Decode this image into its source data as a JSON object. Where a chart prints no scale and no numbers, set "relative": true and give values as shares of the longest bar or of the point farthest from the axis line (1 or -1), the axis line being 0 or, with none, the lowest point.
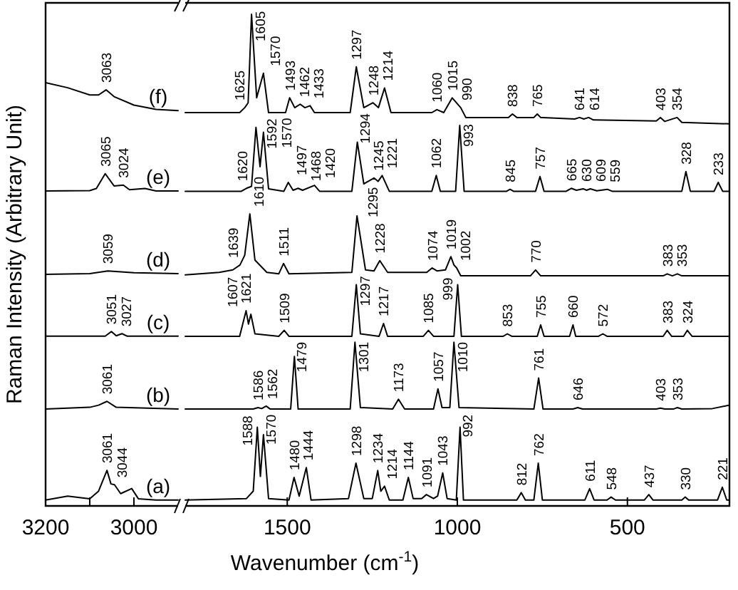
{
  "chart_data": [
    {
      "type": "line",
      "relative": true,
      "ylabel": "Raman Intensity (Arbitrary Unit)",
      "xlim": [
        3200,
        2900
      ],
      "xticks": [
        3200,
        {
          "value": 3100,
          "label": null
        },
        3000
      ],
      "series": [
        {
          "name": "(a)",
          "color": "#000000",
          "x": [
            3200,
            3150,
            3100,
            3080,
            3061,
            3052,
            3044,
            3030,
            3005,
            2990,
            2950,
            2900
          ],
          "values": [
            0.014,
            0.023,
            0.017,
            0.035,
            0.084,
            0.052,
            0.05,
            0.029,
            0.041,
            0.017,
            0.014,
            0.014
          ]
        },
        {
          "name": "(b)",
          "color": "#000000",
          "x": [
            3200,
            3100,
            3080,
            3061,
            3040,
            2900
          ],
          "values": [
            0.229,
            0.233,
            0.238,
            0.247,
            0.233,
            0.229
          ]
        },
        {
          "name": "(c)",
          "color": "#000000",
          "x": [
            3200,
            3065,
            3051,
            3040,
            3027,
            3015,
            2900
          ],
          "values": [
            0.401,
            0.401,
            0.412,
            0.402,
            0.407,
            0.401,
            0.401
          ]
        },
        {
          "name": "(d)",
          "color": "#000000",
          "x": [
            3200,
            3100,
            3059,
            3000,
            2900
          ],
          "values": [
            0.547,
            0.549,
            0.555,
            0.551,
            0.549
          ]
        },
        {
          "name": "(e)",
          "color": "#000000",
          "x": [
            3200,
            3100,
            3085,
            3065,
            3045,
            3024,
            3010,
            2975,
            2950,
            2900
          ],
          "values": [
            0.744,
            0.745,
            0.75,
            0.785,
            0.756,
            0.758,
            0.747,
            0.75,
            0.744,
            0.744
          ]
        },
        {
          "name": "(f)",
          "color": "#000000",
          "x": [
            3200,
            3150,
            3100,
            3080,
            3063,
            3045,
            3000,
            2950,
            2900
          ],
          "values": [
            1,
            0.988,
            0.971,
            0.971,
            0.983,
            0.967,
            0.947,
            0.937,
            0.934
          ]
        }
      ],
      "annotations": [
        {
          "text": "3061",
          "x": 3061,
          "y": 0.084
        },
        {
          "text": "3044",
          "x": 3044,
          "y": 0.05
        },
        {
          "text": "3061",
          "x": 3061,
          "y": 0.247
        },
        {
          "text": "3051",
          "x": 3051,
          "y": 0.412
        },
        {
          "text": "3027",
          "x": 3027,
          "y": 0.407
        },
        {
          "text": "3059",
          "x": 3059,
          "y": 0.555
        },
        {
          "text": "3065",
          "x": 3065,
          "y": 0.785
        },
        {
          "text": "3024",
          "x": 3024,
          "y": 0.758
        },
        {
          "text": "3063",
          "x": 3063,
          "y": 0.983
        }
      ]
    },
    {
      "type": "line",
      "relative": true,
      "xlabel": "Wavenumber (cm$^{-1}$)",
      "xlim": [
        1800,
        200
      ],
      "xticks": [
        1500,
        1000,
        500
      ],
      "series": [
        {
          "color": "#000000",
          "x": [
            1800,
            1620,
            1600,
            1588,
            1579,
            1570,
            1555,
            1495,
            1480,
            1465,
            1444,
            1430,
            1320,
            1298,
            1275,
            1250,
            1234,
            1225,
            1214,
            1200,
            1160,
            1144,
            1130,
            1105,
            1091,
            1070,
            1058,
            1043,
            1030,
            1003,
            992,
            982,
            825,
            812,
            800,
            775,
            762,
            750,
            625,
            611,
            598,
            560,
            548,
            535,
            450,
            437,
            425,
            340,
            330,
            320,
            235,
            221,
            208,
            200
          ],
          "values": [
            0.012,
            0.015,
            0.03,
            0.16,
            0.06,
            0.145,
            0.015,
            0.012,
            0.058,
            0.02,
            0.078,
            0.012,
            0.015,
            0.087,
            0.015,
            0.015,
            0.072,
            0.03,
            0.04,
            0.012,
            0.012,
            0.058,
            0.015,
            0.015,
            0.023,
            0.015,
            0.02,
            0.067,
            0.015,
            0.012,
            0.16,
            0.012,
            0.012,
            0.027,
            0.012,
            0.012,
            0.087,
            0.012,
            0.012,
            0.035,
            0.012,
            0.012,
            0.018,
            0.012,
            0.012,
            0.023,
            0.012,
            0.012,
            0.018,
            0.012,
            0.012,
            0.038,
            0.012,
            0.012
          ]
        },
        {
          "color": "#000000",
          "x": [
            1800,
            1600,
            1586,
            1575,
            1562,
            1550,
            1490,
            1479,
            1468,
            1315,
            1301,
            1285,
            1190,
            1173,
            1155,
            1070,
            1057,
            1045,
            1022,
            1010,
            995,
            775,
            761,
            748,
            660,
            646,
            632,
            415,
            403,
            390,
            365,
            353,
            340,
            250,
            200
          ],
          "values": [
            0.197,
            0.197,
            0.2,
            0.198,
            0.203,
            0.197,
            0.197,
            0.304,
            0.197,
            0.197,
            0.333,
            0.2,
            0.197,
            0.217,
            0.197,
            0.197,
            0.238,
            0.2,
            0.2,
            0.333,
            0.2,
            0.197,
            0.26,
            0.197,
            0.197,
            0.2,
            0.197,
            0.197,
            0.199,
            0.197,
            0.197,
            0.2,
            0.197,
            0.198,
            0.205
          ]
        },
        {
          "color": "#000000",
          "x": [
            1800,
            1640,
            1621,
            1614,
            1607,
            1595,
            1525,
            1509,
            1495,
            1310,
            1297,
            1285,
            1230,
            1217,
            1205,
            1100,
            1085,
            1070,
            1010,
            999,
            988,
            865,
            853,
            840,
            765,
            755,
            745,
            670,
            660,
            652,
            585,
            572,
            560,
            395,
            383,
            370,
            335,
            324,
            310,
            200
          ],
          "values": [
            0.345,
            0.345,
            0.397,
            0.37,
            0.39,
            0.35,
            0.345,
            0.357,
            0.345,
            0.345,
            0.45,
            0.35,
            0.345,
            0.371,
            0.345,
            0.345,
            0.357,
            0.345,
            0.345,
            0.45,
            0.345,
            0.345,
            0.35,
            0.345,
            0.345,
            0.368,
            0.345,
            0.345,
            0.368,
            0.345,
            0.345,
            0.35,
            0.345,
            0.345,
            0.357,
            0.345,
            0.345,
            0.357,
            0.345,
            0.345
          ]
        },
        {
          "color": "#000000",
          "x": [
            1800,
            1700,
            1660,
            1639,
            1625,
            1610,
            1595,
            1560,
            1525,
            1511,
            1495,
            1310,
            1295,
            1270,
            1245,
            1228,
            1205,
            1090,
            1074,
            1060,
            1035,
            1019,
            1010,
            1002,
            990,
            785,
            770,
            755,
            395,
            383,
            368,
            353,
            340,
            200
          ],
          "values": [
            0.47,
            0.475,
            0.48,
            0.49,
            0.51,
            0.594,
            0.5,
            0.475,
            0.472,
            0.493,
            0.472,
            0.475,
            0.59,
            0.48,
            0.478,
            0.499,
            0.475,
            0.475,
            0.484,
            0.478,
            0.48,
            0.507,
            0.49,
            0.484,
            0.468,
            0.468,
            0.48,
            0.468,
            0.468,
            0.472,
            0.468,
            0.472,
            0.468,
            0.468
          ]
        },
        {
          "color": "#000000",
          "x": [
            1800,
            1635,
            1620,
            1605,
            1592,
            1580,
            1570,
            1555,
            1510,
            1497,
            1483,
            1468,
            1455,
            1420,
            1405,
            1310,
            1294,
            1275,
            1245,
            1233,
            1221,
            1200,
            1075,
            1062,
            1050,
            1005,
            993,
            980,
            855,
            845,
            835,
            770,
            757,
            745,
            680,
            665,
            650,
            630,
            620,
            609,
            590,
            559,
            545,
            340,
            328,
            315,
            245,
            233,
            220,
            200
          ],
          "values": [
            0.64,
            0.64,
            0.646,
            0.65,
            0.77,
            0.69,
            0.76,
            0.645,
            0.64,
            0.658,
            0.642,
            0.646,
            0.642,
            0.652,
            0.64,
            0.64,
            0.74,
            0.655,
            0.667,
            0.66,
            0.672,
            0.64,
            0.64,
            0.672,
            0.64,
            0.64,
            0.774,
            0.64,
            0.64,
            0.644,
            0.64,
            0.64,
            0.67,
            0.64,
            0.64,
            0.646,
            0.642,
            0.645,
            0.642,
            0.645,
            0.641,
            0.644,
            0.64,
            0.64,
            0.68,
            0.64,
            0.64,
            0.658,
            0.64,
            0.64
          ]
        },
        {
          "color": "#000000",
          "x": [
            1800,
            1640,
            1625,
            1615,
            1605,
            1590,
            1570,
            1555,
            1505,
            1493,
            1478,
            1462,
            1448,
            1433,
            1420,
            1315,
            1297,
            1275,
            1248,
            1232,
            1214,
            1195,
            1075,
            1060,
            1040,
            1015,
            990,
            975,
            850,
            838,
            825,
            775,
            765,
            755,
            655,
            641,
            628,
            614,
            600,
            415,
            403,
            390,
            354,
            340,
            200
          ],
          "values": [
            0.8,
            0.8,
            0.81,
            0.82,
            1,
            0.83,
            0.88,
            0.8,
            0.8,
            0.83,
            0.81,
            0.817,
            0.81,
            0.814,
            0.8,
            0.8,
            0.893,
            0.81,
            0.82,
            0.81,
            0.85,
            0.8,
            0.8,
            0.806,
            0.8,
            0.83,
            0.81,
            0.79,
            0.79,
            0.797,
            0.79,
            0.79,
            0.797,
            0.79,
            0.787,
            0.79,
            0.787,
            0.79,
            0.785,
            0.783,
            0.79,
            0.782,
            0.79,
            0.78,
            0.777
          ]
        }
      ],
      "annotations": [
        {
          "text": "1588",
          "x": 1588,
          "y": 0.16
        },
        {
          "text": "1570",
          "x": 1570,
          "y": 0.145
        },
        {
          "text": "1480",
          "x": 1480,
          "y": 0.058
        },
        {
          "text": "1444",
          "x": 1444,
          "y": 0.078
        },
        {
          "text": "1298",
          "x": 1298,
          "y": 0.087
        },
        {
          "text": "1234",
          "x": 1234,
          "y": 0.072
        },
        {
          "text": "1214",
          "x": 1214,
          "y": 0.04
        },
        {
          "text": "1144",
          "x": 1144,
          "y": 0.058
        },
        {
          "text": "1091",
          "x": 1091,
          "y": 0.023
        },
        {
          "text": "1043",
          "x": 1043,
          "y": 0.067
        },
        {
          "text": "992",
          "x": 992,
          "y": 0.16
        },
        {
          "text": "812",
          "x": 812,
          "y": 0.027
        },
        {
          "text": "762",
          "x": 762,
          "y": 0.087
        },
        {
          "text": "611",
          "x": 611,
          "y": 0.035
        },
        {
          "text": "548",
          "x": 548,
          "y": 0.018
        },
        {
          "text": "437",
          "x": 437,
          "y": 0.023
        },
        {
          "text": "330",
          "x": 330,
          "y": 0.018
        },
        {
          "text": "221",
          "x": 221,
          "y": 0.038
        },
        {
          "text": "1586",
          "x": 1586,
          "y": 0.2
        },
        {
          "text": "1562",
          "x": 1562,
          "y": 0.203
        },
        {
          "text": "1479",
          "x": 1479,
          "y": 0.304
        },
        {
          "text": "1301",
          "x": 1301,
          "y": 0.333
        },
        {
          "text": "1173",
          "x": 1173,
          "y": 0.217
        },
        {
          "text": "1057",
          "x": 1057,
          "y": 0.238
        },
        {
          "text": "1010",
          "x": 1010,
          "y": 0.333
        },
        {
          "text": "761",
          "x": 761,
          "y": 0.26
        },
        {
          "text": "646",
          "x": 646,
          "y": 0.2
        },
        {
          "text": "403",
          "x": 403,
          "y": 0.199
        },
        {
          "text": "353",
          "x": 353,
          "y": 0.2
        },
        {
          "text": "1621",
          "x": 1621,
          "y": 0.397
        },
        {
          "text": "1607",
          "x": 1607,
          "y": 0.39
        },
        {
          "text": "1509",
          "x": 1509,
          "y": 0.357
        },
        {
          "text": "1297",
          "x": 1297,
          "y": 0.45
        },
        {
          "text": "1217",
          "x": 1217,
          "y": 0.371
        },
        {
          "text": "1085",
          "x": 1085,
          "y": 0.357
        },
        {
          "text": "999",
          "x": 999,
          "y": 0.45
        },
        {
          "text": "853",
          "x": 853,
          "y": 0.35
        },
        {
          "text": "755",
          "x": 755,
          "y": 0.368
        },
        {
          "text": "660",
          "x": 660,
          "y": 0.368
        },
        {
          "text": "572",
          "x": 572,
          "y": 0.35
        },
        {
          "text": "383",
          "x": 383,
          "y": 0.357
        },
        {
          "text": "324",
          "x": 324,
          "y": 0.357
        },
        {
          "text": "1639",
          "x": 1639,
          "y": 0.49
        },
        {
          "text": "1610",
          "x": 1610,
          "y": 0.594
        },
        {
          "text": "1511",
          "x": 1511,
          "y": 0.493
        },
        {
          "text": "1295",
          "x": 1295,
          "y": 0.59
        },
        {
          "text": "1228",
          "x": 1228,
          "y": 0.499
        },
        {
          "text": "1074",
          "x": 1074,
          "y": 0.484
        },
        {
          "text": "1019",
          "x": 1019,
          "y": 0.507
        },
        {
          "text": "1002",
          "x": 1002,
          "y": 0.484
        },
        {
          "text": "770",
          "x": 770,
          "y": 0.48
        },
        {
          "text": "383",
          "x": 383,
          "y": 0.472
        },
        {
          "text": "353",
          "x": 353,
          "y": 0.472
        },
        {
          "text": "1620",
          "x": 1620,
          "y": 0.646
        },
        {
          "text": "1592",
          "x": 1592,
          "y": 0.77
        },
        {
          "text": "1570",
          "x": 1570,
          "y": 0.76
        },
        {
          "text": "1497",
          "x": 1497,
          "y": 0.658
        },
        {
          "text": "1468",
          "x": 1468,
          "y": 0.646
        },
        {
          "text": "1420",
          "x": 1420,
          "y": 0.652
        },
        {
          "text": "1294",
          "x": 1294,
          "y": 0.74
        },
        {
          "text": "1245",
          "x": 1245,
          "y": 0.667
        },
        {
          "text": "1221",
          "x": 1221,
          "y": 0.672
        },
        {
          "text": "1062",
          "x": 1062,
          "y": 0.672
        },
        {
          "text": "993",
          "x": 993,
          "y": 0.774
        },
        {
          "text": "845",
          "x": 845,
          "y": 0.644
        },
        {
          "text": "757",
          "x": 757,
          "y": 0.67
        },
        {
          "text": "665",
          "x": 665,
          "y": 0.646
        },
        {
          "text": "630",
          "x": 630,
          "y": 0.645
        },
        {
          "text": "609",
          "x": 609,
          "y": 0.645
        },
        {
          "text": "559",
          "x": 559,
          "y": 0.644
        },
        {
          "text": "328",
          "x": 328,
          "y": 0.68
        },
        {
          "text": "233",
          "x": 233,
          "y": 0.658
        },
        {
          "text": "1625",
          "x": 1625,
          "y": 0.81
        },
        {
          "text": "1605",
          "x": 1605,
          "y": 1
        },
        {
          "text": "1570",
          "x": 1570,
          "y": 0.88
        },
        {
          "text": "1493",
          "x": 1493,
          "y": 0.83
        },
        {
          "text": "1462",
          "x": 1462,
          "y": 0.817
        },
        {
          "text": "1433",
          "x": 1433,
          "y": 0.814
        },
        {
          "text": "1297",
          "x": 1297,
          "y": 0.893
        },
        {
          "text": "1248",
          "x": 1248,
          "y": 0.82
        },
        {
          "text": "1214",
          "x": 1214,
          "y": 0.85
        },
        {
          "text": "1060",
          "x": 1060,
          "y": 0.806
        },
        {
          "text": "1015",
          "x": 1015,
          "y": 0.83
        },
        {
          "text": "990",
          "x": 990,
          "y": 0.81
        },
        {
          "text": "838",
          "x": 838,
          "y": 0.797
        },
        {
          "text": "765",
          "x": 765,
          "y": 0.797
        },
        {
          "text": "641",
          "x": 641,
          "y": 0.79
        },
        {
          "text": "614",
          "x": 614,
          "y": 0.79
        },
        {
          "text": "403",
          "x": 403,
          "y": 0.79
        },
        {
          "text": "354",
          "x": 354,
          "y": 0.79
        }
      ]
    }
  ]
}
